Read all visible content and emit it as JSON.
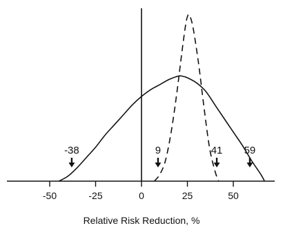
{
  "chart_data": {
    "type": "line",
    "xlabel": "Relative Risk Reduction, %",
    "xlim": [
      -73,
      73
    ],
    "ylim": [
      0,
      1
    ],
    "x_ticks": [
      -50,
      -25,
      0,
      25,
      50
    ],
    "x_tick_labels": [
      "-50",
      "-25",
      "0",
      "25",
      "50"
    ],
    "grid": false,
    "legend": "none",
    "series": [
      {
        "style": "solid",
        "x": [
          -45,
          -40,
          -35,
          -30,
          -25,
          -20,
          -15,
          -10,
          -5,
          0,
          5,
          10,
          15,
          20,
          22,
          25,
          30,
          35,
          40,
          45,
          50,
          55,
          60,
          65,
          67
        ],
        "y": [
          0.0,
          0.03,
          0.08,
          0.14,
          0.2,
          0.27,
          0.33,
          0.39,
          0.45,
          0.5,
          0.54,
          0.57,
          0.6,
          0.62,
          0.62,
          0.61,
          0.58,
          0.53,
          0.45,
          0.37,
          0.29,
          0.21,
          0.12,
          0.04,
          0.0
        ]
      },
      {
        "style": "dashed",
        "x": [
          7,
          10,
          13,
          16,
          19,
          22,
          24,
          25,
          26,
          28,
          31,
          34,
          37,
          40,
          42
        ],
        "y": [
          0.0,
          0.04,
          0.12,
          0.28,
          0.5,
          0.76,
          0.92,
          0.97,
          0.98,
          0.91,
          0.7,
          0.44,
          0.2,
          0.06,
          0.0
        ]
      }
    ],
    "annotations": [
      {
        "label": "-38",
        "x": -38
      },
      {
        "label": "9",
        "x": 9
      },
      {
        "label": "41",
        "x": 41
      },
      {
        "label": "59",
        "x": 59
      }
    ]
  }
}
